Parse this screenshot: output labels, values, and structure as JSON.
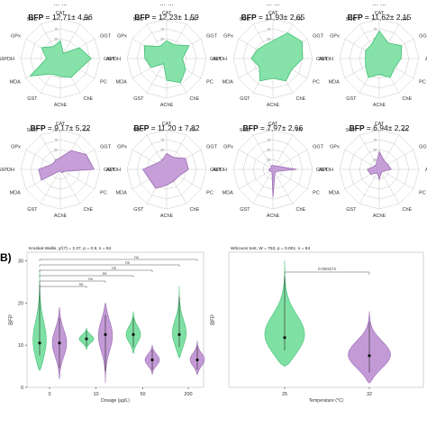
{
  "colors": {
    "green_fill": "#7fe0a4",
    "green_stroke": "#3fbf73",
    "purple_fill": "#c39ad6",
    "purple_stroke": "#9b6fb3",
    "axis": "#333333",
    "grid": "#c8c8c8"
  },
  "panel_b_letter": "B)",
  "chart_data": [
    {
      "type": "radar",
      "panel": "A-row1",
      "axes": [
        "CAT",
        "FA",
        "GGT",
        "ALT",
        "PC",
        "ChE",
        "AChE",
        "GST",
        "MDA",
        "G6PDH",
        "GPx",
        "SOD"
      ],
      "radial_ticks": [
        "100",
        "75",
        "50",
        "25",
        "0"
      ],
      "top_labels": [
        "... ...",
        "... ...",
        "... ...",
        "... ..."
      ],
      "series": [
        {
          "name": "BFP = 12,71± 4,96",
          "label": "BFP",
          "stat": "= 12,71± 4,96",
          "color": "green",
          "values": [
            0.45,
            0.15,
            0.55,
            0.78,
            0.55,
            0.55,
            0.45,
            0.45,
            0.88,
            0.35,
            0.55,
            0.35
          ]
        },
        {
          "name": "BFP = 12,23± 1,59",
          "label": "BFP",
          "stat": "= 12,23± 1,59",
          "color": "green",
          "values": [
            0.45,
            0.4,
            0.65,
            0.4,
            0.55,
            0.7,
            0.55,
            0.15,
            0.45,
            0.55,
            0.65,
            0.35
          ]
        },
        {
          "name": "BFP = 11,93± 2,65",
          "label": "BFP",
          "stat": "= 11,93± 2,65",
          "color": "green",
          "values": [
            0.45,
            0.75,
            0.85,
            0.75,
            0.55,
            0.65,
            0.5,
            0.65,
            0.4,
            0.55,
            0.45,
            0.4
          ]
        },
        {
          "name": "BFP = 11,62± 2,15",
          "label": "BFP",
          "stat": "= 11,62± 2,15",
          "color": "green",
          "values": [
            0.7,
            0.45,
            0.65,
            0.55,
            0.45,
            0.55,
            0.4,
            0.55,
            0.4,
            0.35,
            0.4,
            0.4
          ]
        }
      ]
    },
    {
      "type": "radar",
      "panel": "A-row2",
      "axes": [
        "CAT",
        "FA",
        "GGT",
        "ALT",
        "PC",
        "ChE",
        "AChE",
        "GST",
        "MDA",
        "G6PDH",
        "GPx",
        "SOD"
      ],
      "radial_ticks": [
        "100",
        "75",
        "50",
        "25",
        "0"
      ],
      "series": [
        {
          "name": "BFP = 9,17± 5,22",
          "label": "BFP",
          "stat": "= 9,17± 5,22",
          "color": "purple",
          "values": [
            0.3,
            0.55,
            0.75,
            0.85,
            0.1,
            0.1,
            0.05,
            0.05,
            0.55,
            0.55,
            0.25,
            0.25
          ]
        },
        {
          "name": "BFP = 11,20 ± 7,82",
          "label": "BFP",
          "stat": "= 11,20 ± 7,82",
          "color": "purple",
          "values": [
            0.4,
            0.35,
            0.55,
            0.55,
            0.35,
            0.35,
            0.4,
            0.55,
            0.5,
            0.6,
            0.3,
            0.25
          ]
        },
        {
          "name": "BFP = 7,97± 2,66",
          "label": "BFP",
          "stat": "= 7,97± 2,66",
          "color": "purple",
          "values": [
            0.1,
            0.1,
            0.15,
            0.6,
            0.1,
            0.1,
            0.7,
            0.05,
            0.1,
            0.1,
            0.05,
            0.1
          ]
        },
        {
          "name": "BFP = 6,94± 2,22",
          "label": "BFP",
          "stat": "= 6,94± 2,22",
          "color": "purple",
          "values": [
            0.45,
            0.25,
            0.25,
            0.3,
            0.1,
            0.1,
            0.25,
            0.1,
            0.25,
            0.3,
            0.15,
            0.15
          ]
        }
      ]
    },
    {
      "type": "violin",
      "panel": "B-left",
      "title": "Kruskal-Wallis, χ²(7) = 2.37, p = 0.9, n = 84",
      "ylabel": "BFP",
      "xlabel": "Dosage (μg/L)",
      "ylim": [
        0,
        32
      ],
      "yticks": [
        0,
        10,
        20,
        30
      ],
      "xtick_labels": [
        "0",
        "10",
        "50",
        "200"
      ],
      "groups": [
        {
          "dose": "0",
          "color": "green",
          "median": 10.5,
          "min": 4,
          "max": 28
        },
        {
          "dose": "0",
          "color": "purple",
          "median": 10.5,
          "min": 2,
          "max": 19
        },
        {
          "dose": "10",
          "color": "green",
          "median": 11.5,
          "min": 9,
          "max": 14
        },
        {
          "dose": "10",
          "color": "purple",
          "median": 12.5,
          "min": 1,
          "max": 20
        },
        {
          "dose": "50",
          "color": "green",
          "median": 12.5,
          "min": 8,
          "max": 18
        },
        {
          "dose": "50",
          "color": "purple",
          "median": 6.5,
          "min": 3,
          "max": 10
        },
        {
          "dose": "200",
          "color": "green",
          "median": 12.5,
          "min": 7,
          "max": 24
        },
        {
          "dose": "200",
          "color": "purple",
          "median": 6.5,
          "min": 3,
          "max": 11
        }
      ],
      "comparisons": [
        {
          "from": 0,
          "to": 2,
          "label": "ns"
        },
        {
          "from": 0,
          "to": 3,
          "label": "ns"
        },
        {
          "from": 0,
          "to": 4,
          "label": "ns"
        },
        {
          "from": 0,
          "to": 5,
          "label": "ns"
        },
        {
          "from": 0,
          "to": 6,
          "label": "ns"
        },
        {
          "from": 0,
          "to": 7,
          "label": "ns"
        }
      ]
    },
    {
      "type": "violin",
      "panel": "B-right",
      "title": "Wilcoxon test, W = 753, p = 0.001, n = 84",
      "ylabel": "BFP",
      "xlabel": "Temperature (°C)",
      "ylim": [
        0,
        32
      ],
      "groups": [
        {
          "label": "25",
          "color": "green",
          "median": 11.8,
          "min": 5,
          "max": 30
        },
        {
          "label": "32",
          "color": "purple",
          "median": 7.5,
          "min": 1,
          "max": 18
        }
      ],
      "comparisons": [
        {
          "from": 0,
          "to": 1,
          "label": "0.000472"
        }
      ]
    }
  ]
}
